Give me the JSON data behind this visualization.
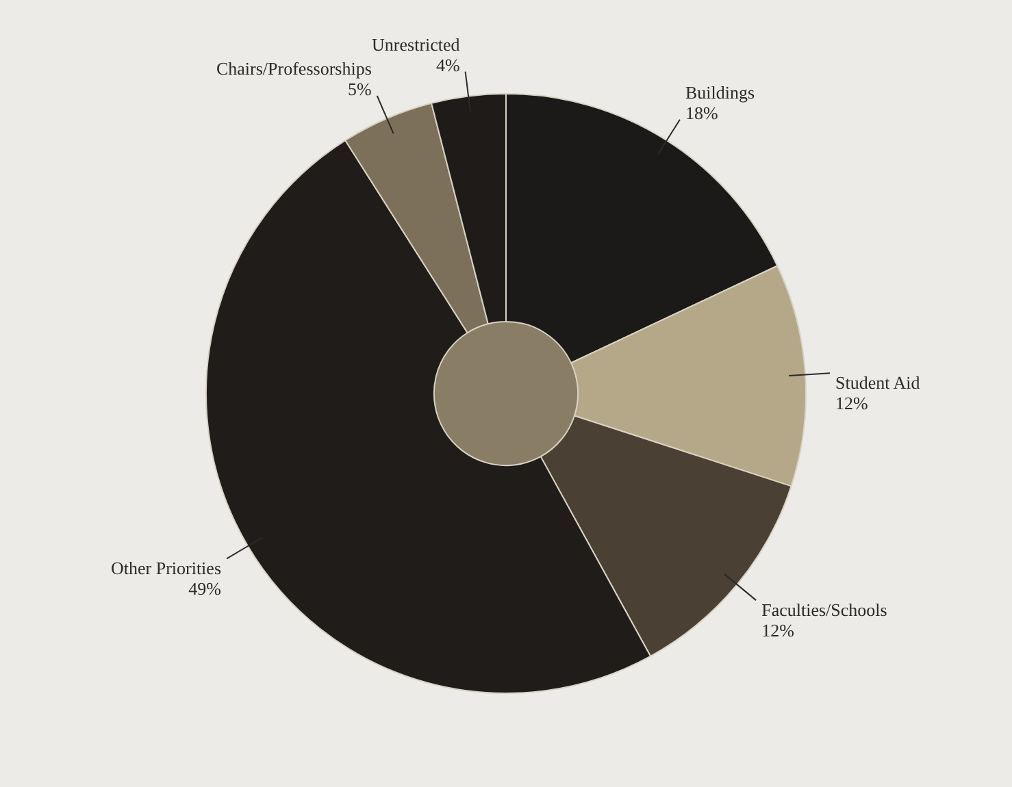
{
  "chart_data": {
    "type": "donut",
    "categories": [
      "Buildings",
      "Student Aid",
      "Faculties/Schools",
      "Other Priorities",
      "Chairs/Professorships",
      "Unrestricted"
    ],
    "values": [
      18,
      12,
      12,
      49,
      5,
      4
    ],
    "value_labels": [
      "18%",
      "12%",
      "12%",
      "49%",
      "5%",
      "4%"
    ],
    "colors": [
      "#1c1a18",
      "#b5a888",
      "#4a4033",
      "#1f1c1a",
      "#7d705a",
      "#1e1b19"
    ],
    "legend": false
  }
}
